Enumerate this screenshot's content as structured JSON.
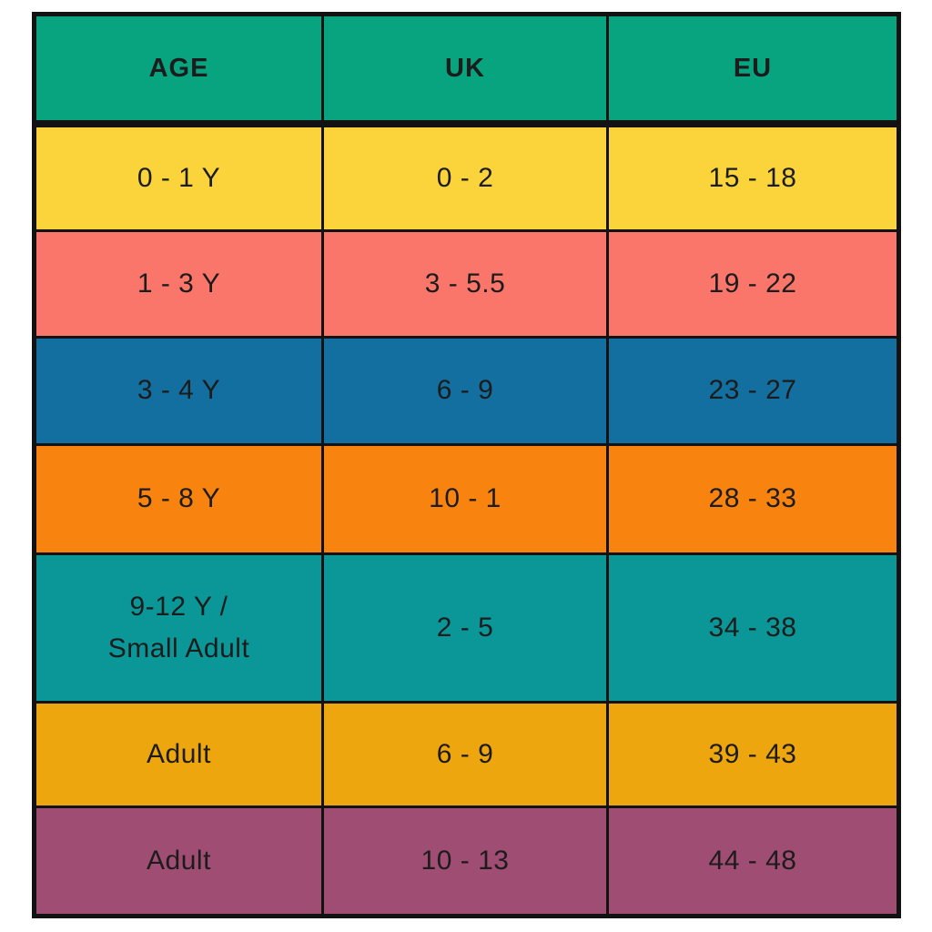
{
  "chart_data": {
    "type": "table",
    "columns": [
      "AGE",
      "UK",
      "EU"
    ],
    "rows": [
      {
        "age": "0 - 1 Y",
        "uk": "0 - 2",
        "eu": "15 - 18",
        "row_color": "#FAD43A"
      },
      {
        "age": "1 - 3 Y",
        "uk": "3 - 5.5",
        "eu": "19 - 22",
        "row_color": "#FA756A"
      },
      {
        "age": "3 - 4 Y",
        "uk": "6 - 9",
        "eu": "23 - 27",
        "row_color": "#136F9F"
      },
      {
        "age": "5 - 8 Y",
        "uk": "10 - 1",
        "eu": "28 - 33",
        "row_color": "#F8830E"
      },
      {
        "age": "9-12 Y /\nSmall Adult",
        "uk": "2 - 5",
        "eu": "34 - 38",
        "row_color": "#0B9698"
      },
      {
        "age": "Adult",
        "uk": "6 - 9",
        "eu": "39 - 43",
        "row_color": "#EDA60D"
      },
      {
        "age": "Adult",
        "uk": "10 - 13",
        "eu": "44 - 48",
        "row_color": "#9F4D73"
      }
    ],
    "header_color": "#07A47F",
    "grid_color": "#121212",
    "text_color": "#1C1C1C",
    "background": "#FFFFFF",
    "legend_position": "none",
    "grid_lines": "black cell borders, thick rule under header"
  }
}
